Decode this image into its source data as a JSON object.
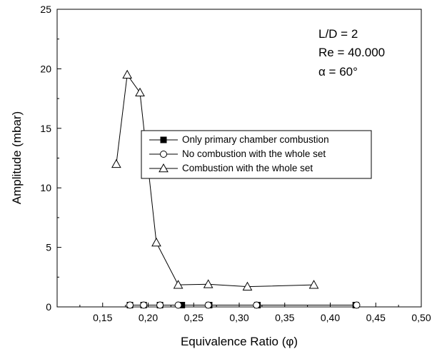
{
  "chart_data": {
    "type": "line",
    "title": "",
    "xlabel": "Equivalence Ratio (φ)",
    "ylabel": "Amplitude (mbar)",
    "xlim": [
      0.1,
      0.5
    ],
    "ylim": [
      0,
      25
    ],
    "x_ticks": [
      "0,15",
      "0,20",
      "0,25",
      "0,30",
      "0,35",
      "0,40",
      "0,45",
      "0,50"
    ],
    "y_ticks": [
      "0",
      "5",
      "10",
      "15",
      "20",
      "25"
    ],
    "annotations": [
      "L/D = 2",
      "Re = 40.000",
      "α = 60°"
    ],
    "legend_position": "center",
    "grid": false,
    "series": [
      {
        "name": "Only primary chamber combustion",
        "marker": "filled-square",
        "x": [
          0.18,
          0.195,
          0.213,
          0.237,
          0.267,
          0.32,
          0.428
        ],
        "y": [
          0.15,
          0.15,
          0.15,
          0.15,
          0.15,
          0.15,
          0.15
        ]
      },
      {
        "name": "No combustion with the whole set",
        "marker": "open-circle",
        "x": [
          0.18,
          0.195,
          0.213,
          0.233,
          0.266,
          0.319,
          0.429
        ],
        "y": [
          0.15,
          0.15,
          0.15,
          0.15,
          0.15,
          0.15,
          0.15
        ]
      },
      {
        "name": "Combustion with the whole set",
        "marker": "open-triangle",
        "x": [
          0.165,
          0.177,
          0.191,
          0.209,
          0.233,
          0.266,
          0.309,
          0.382
        ],
        "y": [
          12.0,
          19.5,
          18.0,
          5.4,
          1.85,
          1.9,
          1.7,
          1.85
        ]
      }
    ]
  }
}
